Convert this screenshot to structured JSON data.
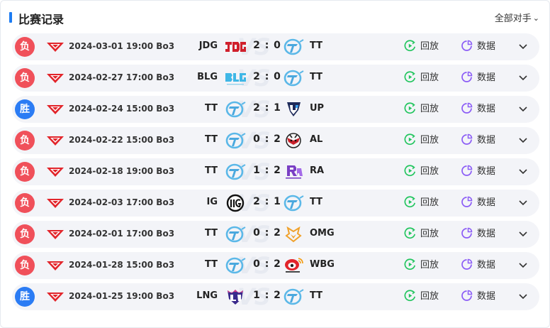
{
  "header": {
    "title": "比赛记录",
    "filter_label": "全部对手"
  },
  "colors": {
    "accent": "#1d7cf2",
    "loss": "#f0505a",
    "win": "#2b7cf4",
    "replay": "#22c55e",
    "stats": "#8b5cf6"
  },
  "actions": {
    "replay_label": "回放",
    "stats_label": "数据"
  },
  "matches": [
    {
      "result": "负",
      "outcome": "loss",
      "date": "2024-03-01 19:00 Bo3",
      "team_left": "JDG",
      "score": "2:0",
      "team_right": "TT",
      "logo_left": "jdg-logo",
      "logo_right": "tt-logo"
    },
    {
      "result": "负",
      "outcome": "loss",
      "date": "2024-02-27 17:00 Bo3",
      "team_left": "BLG",
      "score": "2:0",
      "team_right": "TT",
      "logo_left": "blg-logo",
      "logo_right": "tt-logo"
    },
    {
      "result": "胜",
      "outcome": "win",
      "date": "2024-02-24 15:00 Bo3",
      "team_left": "TT",
      "score": "2:1",
      "team_right": "UP",
      "logo_left": "tt-logo",
      "logo_right": "up-logo"
    },
    {
      "result": "负",
      "outcome": "loss",
      "date": "2024-02-22 15:00 Bo3",
      "team_left": "TT",
      "score": "0:2",
      "team_right": "AL",
      "logo_left": "tt-logo",
      "logo_right": "al-logo"
    },
    {
      "result": "负",
      "outcome": "loss",
      "date": "2024-02-18 19:00 Bo3",
      "team_left": "TT",
      "score": "1:2",
      "team_right": "RA",
      "logo_left": "tt-logo",
      "logo_right": "ra-logo"
    },
    {
      "result": "负",
      "outcome": "loss",
      "date": "2024-02-03 17:00 Bo3",
      "team_left": "IG",
      "score": "2:1",
      "team_right": "TT",
      "logo_left": "ig-logo",
      "logo_right": "tt-logo"
    },
    {
      "result": "负",
      "outcome": "loss",
      "date": "2024-02-01 17:00 Bo3",
      "team_left": "TT",
      "score": "0:2",
      "team_right": "OMG",
      "logo_left": "tt-logo",
      "logo_right": "omg-logo"
    },
    {
      "result": "负",
      "outcome": "loss",
      "date": "2024-01-28 15:00 Bo3",
      "team_left": "TT",
      "score": "0:2",
      "team_right": "WBG",
      "logo_left": "tt-logo",
      "logo_right": "wbg-logo"
    },
    {
      "result": "胜",
      "outcome": "win",
      "date": "2024-01-25 19:00 Bo3",
      "team_left": "LNG",
      "score": "1:2",
      "team_right": "TT",
      "logo_left": "lng-logo",
      "logo_right": "tt-logo"
    }
  ]
}
